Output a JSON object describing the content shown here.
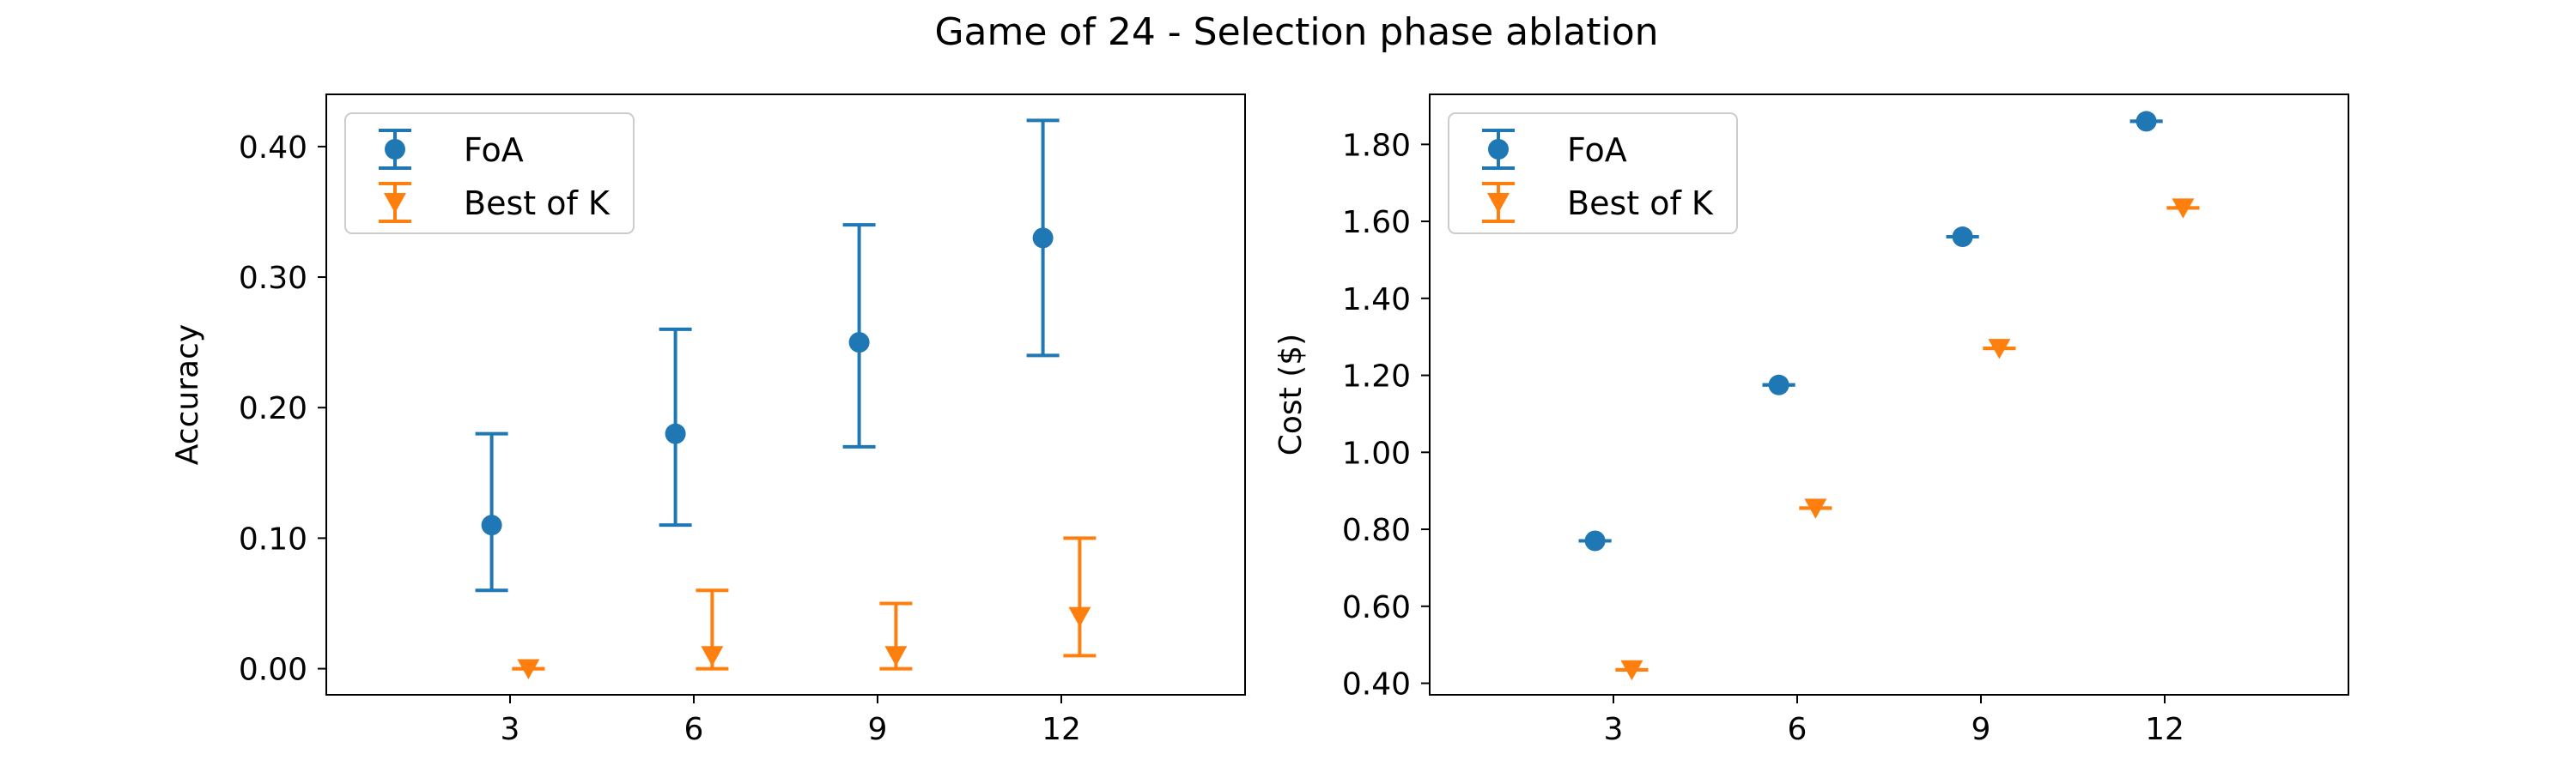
{
  "figure": {
    "title": "Game of 24 - Selection phase ablation"
  },
  "colors": {
    "foa": "#1f77b4",
    "bestofk": "#ff7f0e"
  },
  "chart_data": [
    {
      "type": "scatter",
      "xlabel": "",
      "ylabel": "Accuracy",
      "x_ticks": [
        3,
        6,
        9,
        12
      ],
      "x_tick_labels": [
        "3",
        "6",
        "9",
        "12"
      ],
      "xlim": [
        0,
        15
      ],
      "y_ticks": [
        0.0,
        0.1,
        0.2,
        0.3,
        0.4
      ],
      "y_tick_labels": [
        "0.00",
        "0.10",
        "0.20",
        "0.30",
        "0.40"
      ],
      "ylim": [
        -0.02,
        0.44
      ],
      "legend_position": "top-left",
      "grid": false,
      "series": [
        {
          "name": "FoA",
          "marker": "circle",
          "color": "#1f77b4",
          "x": [
            2.7,
            5.7,
            8.7,
            11.7
          ],
          "y": [
            0.11,
            0.18,
            0.25,
            0.33
          ],
          "err_low": [
            0.06,
            0.11,
            0.17,
            0.24
          ],
          "err_high": [
            0.18,
            0.26,
            0.34,
            0.42
          ]
        },
        {
          "name": "Best of K",
          "marker": "triangle-down",
          "color": "#ff7f0e",
          "x": [
            3.3,
            6.3,
            9.3,
            12.3
          ],
          "y": [
            0.0,
            0.01,
            0.01,
            0.04
          ],
          "err_low": [
            0.0,
            0.0,
            0.0,
            0.01
          ],
          "err_high": [
            0.0,
            0.06,
            0.05,
            0.1
          ]
        }
      ]
    },
    {
      "type": "scatter",
      "xlabel": "",
      "ylabel": "Cost ($)",
      "x_ticks": [
        3,
        6,
        9,
        12
      ],
      "x_tick_labels": [
        "3",
        "6",
        "9",
        "12"
      ],
      "xlim": [
        0,
        15
      ],
      "y_ticks": [
        0.4,
        0.6,
        0.8,
        1.0,
        1.2,
        1.4,
        1.6,
        1.8
      ],
      "y_tick_labels": [
        "0.40",
        "0.60",
        "0.80",
        "1.00",
        "1.20",
        "1.40",
        "1.60",
        "1.80"
      ],
      "ylim": [
        0.37,
        1.93
      ],
      "legend_position": "top-left",
      "grid": false,
      "series": [
        {
          "name": "FoA",
          "marker": "circle",
          "color": "#1f77b4",
          "x": [
            2.7,
            5.7,
            8.7,
            11.7
          ],
          "y": [
            0.77,
            1.175,
            1.56,
            1.86
          ],
          "err_low": [
            0.77,
            1.175,
            1.56,
            1.86
          ],
          "err_high": [
            0.77,
            1.175,
            1.56,
            1.86
          ]
        },
        {
          "name": "Best of K",
          "marker": "triangle-down",
          "color": "#ff7f0e",
          "x": [
            3.3,
            6.3,
            9.3,
            12.3
          ],
          "y": [
            0.435,
            0.855,
            1.27,
            1.635
          ],
          "err_low": [
            0.435,
            0.855,
            1.27,
            1.635
          ],
          "err_high": [
            0.435,
            0.855,
            1.27,
            1.635
          ]
        }
      ]
    }
  ]
}
